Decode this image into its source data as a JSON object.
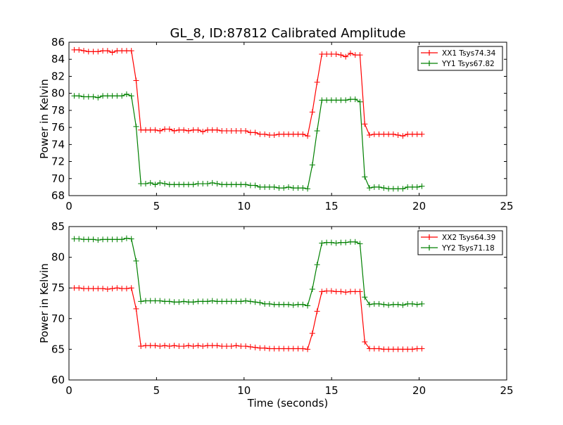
{
  "figure_title": "GL_8, ID:87812 Calibrated Amplitude",
  "colors": {
    "xx": "#ff0000",
    "yy": "#008000"
  },
  "chart_data": [
    {
      "type": "line",
      "title": "GL_8, ID:87812 Calibrated Amplitude",
      "xlabel": "",
      "ylabel": "Power in Kelvin",
      "xlim": [
        0,
        25
      ],
      "ylim": [
        68,
        86
      ],
      "xticks": [
        0,
        5,
        10,
        15,
        20,
        25
      ],
      "yticks": [
        68,
        70,
        72,
        74,
        76,
        78,
        80,
        82,
        84,
        86
      ],
      "legend_position": "top-right",
      "grid": false,
      "x_start": 0.3,
      "x_step": 0.272,
      "series": [
        {
          "name": "XX1 Tsys74.34",
          "color": "#ff0000",
          "marker": "+",
          "values": [
            85.1,
            85.1,
            85.0,
            84.9,
            84.9,
            84.9,
            85.0,
            85.0,
            84.8,
            85.0,
            85.0,
            85.0,
            85.0,
            81.5,
            75.7,
            75.7,
            75.7,
            75.7,
            75.6,
            75.8,
            75.8,
            75.6,
            75.7,
            75.7,
            75.6,
            75.7,
            75.7,
            75.5,
            75.7,
            75.7,
            75.7,
            75.6,
            75.6,
            75.6,
            75.6,
            75.6,
            75.6,
            75.4,
            75.4,
            75.2,
            75.2,
            75.1,
            75.1,
            75.2,
            75.2,
            75.2,
            75.2,
            75.2,
            75.2,
            75.0,
            77.8,
            81.3,
            84.6,
            84.6,
            84.6,
            84.6,
            84.5,
            84.3,
            84.7,
            84.5,
            84.5,
            76.4,
            75.1,
            75.2,
            75.2,
            75.2,
            75.2,
            75.2,
            75.1,
            75.0,
            75.2,
            75.2,
            75.2,
            75.2
          ]
        },
        {
          "name": "YY1 Tsys67.82",
          "color": "#008000",
          "marker": "+",
          "values": [
            79.7,
            79.7,
            79.6,
            79.6,
            79.6,
            79.5,
            79.7,
            79.7,
            79.7,
            79.7,
            79.7,
            79.9,
            79.7,
            76.1,
            69.4,
            69.4,
            69.5,
            69.3,
            69.5,
            69.4,
            69.3,
            69.3,
            69.3,
            69.3,
            69.3,
            69.3,
            69.4,
            69.4,
            69.4,
            69.5,
            69.4,
            69.3,
            69.3,
            69.3,
            69.3,
            69.3,
            69.3,
            69.2,
            69.2,
            69.0,
            69.0,
            69.0,
            69.0,
            68.9,
            68.9,
            69.0,
            68.9,
            68.9,
            68.9,
            68.8,
            71.6,
            75.6,
            79.2,
            79.2,
            79.2,
            79.2,
            79.2,
            79.2,
            79.3,
            79.3,
            79.0,
            70.2,
            68.9,
            69.0,
            69.0,
            68.9,
            68.8,
            68.8,
            68.8,
            68.8,
            69.0,
            69.0,
            69.0,
            69.1
          ]
        }
      ]
    },
    {
      "type": "line",
      "title": "",
      "xlabel": "Time (seconds)",
      "ylabel": "Power in Kelvin",
      "xlim": [
        0,
        25
      ],
      "ylim": [
        60,
        85
      ],
      "xticks": [
        0,
        5,
        10,
        15,
        20,
        25
      ],
      "yticks": [
        60,
        65,
        70,
        75,
        80,
        85
      ],
      "legend_position": "top-right",
      "grid": false,
      "x_start": 0.3,
      "x_step": 0.272,
      "series": [
        {
          "name": "XX2 Tsys64.39",
          "color": "#ff0000",
          "marker": "+",
          "values": [
            75.0,
            75.0,
            74.9,
            74.9,
            74.9,
            74.9,
            74.9,
            74.8,
            74.9,
            75.0,
            74.9,
            74.9,
            75.0,
            71.6,
            65.5,
            65.6,
            65.6,
            65.6,
            65.5,
            65.6,
            65.5,
            65.6,
            65.5,
            65.5,
            65.6,
            65.5,
            65.6,
            65.5,
            65.6,
            65.6,
            65.6,
            65.5,
            65.5,
            65.5,
            65.6,
            65.5,
            65.5,
            65.4,
            65.3,
            65.2,
            65.2,
            65.1,
            65.1,
            65.1,
            65.1,
            65.1,
            65.1,
            65.1,
            65.1,
            65.0,
            67.6,
            71.2,
            74.4,
            74.5,
            74.5,
            74.4,
            74.4,
            74.3,
            74.4,
            74.4,
            74.4,
            66.2,
            65.1,
            65.1,
            65.1,
            65.0,
            65.0,
            65.0,
            65.0,
            65.0,
            65.0,
            65.0,
            65.1,
            65.1
          ]
        },
        {
          "name": "YY2 Tsys71.18",
          "color": "#008000",
          "marker": "+",
          "values": [
            83.0,
            83.0,
            82.9,
            82.9,
            82.9,
            82.8,
            82.9,
            82.9,
            82.9,
            82.9,
            82.9,
            83.1,
            83.0,
            79.4,
            72.8,
            72.9,
            72.9,
            72.9,
            72.9,
            72.8,
            72.8,
            72.7,
            72.7,
            72.8,
            72.7,
            72.7,
            72.8,
            72.8,
            72.8,
            72.9,
            72.8,
            72.8,
            72.8,
            72.8,
            72.8,
            72.8,
            72.9,
            72.8,
            72.7,
            72.6,
            72.4,
            72.4,
            72.3,
            72.3,
            72.3,
            72.3,
            72.2,
            72.3,
            72.3,
            72.1,
            74.8,
            78.8,
            82.3,
            82.4,
            82.4,
            82.3,
            82.4,
            82.4,
            82.5,
            82.5,
            82.2,
            73.5,
            72.3,
            72.4,
            72.4,
            72.3,
            72.2,
            72.3,
            72.3,
            72.2,
            72.4,
            72.4,
            72.3,
            72.4
          ]
        }
      ]
    }
  ]
}
